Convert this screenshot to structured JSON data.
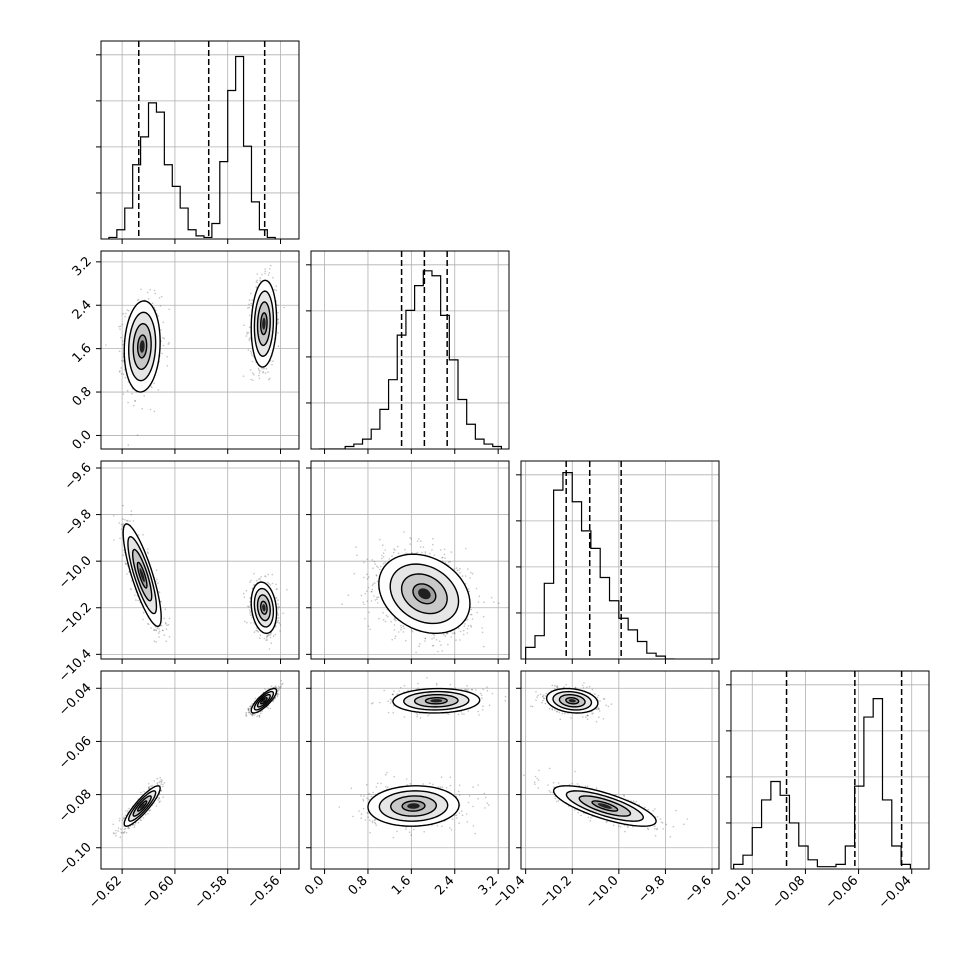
{
  "chart_data": {
    "type": "corner",
    "params": [
      {
        "ticks": [
          -0.62,
          -0.6,
          -0.58,
          -0.56
        ],
        "tick_labels": [
          "−0.62",
          "−0.60",
          "−0.58",
          "−0.56"
        ],
        "range": [
          -0.628,
          -0.553
        ]
      },
      {
        "ticks": [
          0.0,
          0.8,
          1.6,
          2.4,
          3.2
        ],
        "tick_labels": [
          "0.0",
          "0.8",
          "1.6",
          "2.4",
          "3.2"
        ],
        "range": [
          -0.25,
          3.4
        ]
      },
      {
        "ticks": [
          -10.4,
          -10.2,
          -10.0,
          -9.8,
          -9.6
        ],
        "tick_labels": [
          "−10.4",
          "−10.2",
          "−10.0",
          "−9.8",
          "−9.6"
        ],
        "range": [
          -10.42,
          -9.57
        ]
      },
      {
        "ticks": [
          -0.1,
          -0.08,
          -0.06,
          -0.04
        ],
        "tick_labels": [
          "−0.10",
          "−0.08",
          "−0.06",
          "−0.04"
        ],
        "range": [
          -0.108,
          -0.0335
        ]
      }
    ],
    "histograms": [
      {
        "edges_start": -0.625,
        "bin_width": 0.003,
        "counts": [
          0.5,
          3,
          10,
          24,
          33,
          44,
          41,
          24,
          17,
          10,
          3,
          1,
          0.5,
          5,
          25,
          48,
          59,
          30,
          12,
          3,
          0.5
        ],
        "quantiles": [
          -0.6137,
          -0.5872,
          -0.566
        ],
        "ymax": 64
      },
      {
        "edges_start": -0.1,
        "bin_width": 0.16,
        "counts": [
          0,
          0,
          0,
          0.5,
          1,
          2,
          4,
          8,
          14,
          23,
          28,
          33,
          36,
          35,
          27,
          18,
          10,
          5,
          2,
          1,
          0.5
        ],
        "quantiles": [
          1.42,
          1.84,
          2.26
        ],
        "ymax": 40
      },
      {
        "edges_start": -10.4,
        "bin_width": 0.04,
        "counts": [
          2,
          4,
          13,
          29,
          32,
          27,
          22,
          19,
          14,
          10,
          7,
          5,
          3,
          1,
          0.5,
          0
        ],
        "quantiles": [
          -10.226,
          -10.125,
          -9.99
        ],
        "ymax": 34
      },
      {
        "edges_start": -0.107,
        "bin_width": 0.0035,
        "counts": [
          1,
          3,
          9,
          15,
          19,
          16,
          10,
          5,
          2,
          0.5,
          0.5,
          1,
          5,
          18,
          33,
          37,
          15,
          5,
          1
        ],
        "quantiles": [
          -0.0871,
          -0.0614,
          -0.0438
        ],
        "ymax": 43
      }
    ],
    "pairs": [
      {
        "row": 1,
        "col": 0,
        "modes": [
          {
            "mx": -0.6124,
            "my": 1.64,
            "sx": 0.0034,
            "sy": 0.42,
            "rho": 0.1,
            "w": 0.5
          },
          {
            "mx": -0.5663,
            "my": 2.06,
            "sx": 0.0024,
            "sy": 0.4,
            "rho": 0.1,
            "w": 0.5
          }
        ]
      },
      {
        "row": 2,
        "col": 0,
        "modes": [
          {
            "mx": -0.6124,
            "my": -10.06,
            "sx": 0.0036,
            "sy": 0.11,
            "rho": -0.82,
            "w": 0.5
          },
          {
            "mx": -0.5663,
            "my": -10.2,
            "sx": 0.0024,
            "sy": 0.055,
            "rho": -0.2,
            "w": 0.5
          }
        ]
      },
      {
        "row": 2,
        "col": 1,
        "modes": [
          {
            "mx": 1.84,
            "my": -10.14,
            "sx": 0.42,
            "sy": 0.085,
            "rho": -0.25,
            "w": 1
          }
        ]
      },
      {
        "row": 3,
        "col": 0,
        "modes": [
          {
            "mx": -0.6124,
            "my": -0.0843,
            "sx": 0.0034,
            "sy": 0.0038,
            "rho": 0.88,
            "w": 0.5
          },
          {
            "mx": -0.5663,
            "my": -0.0447,
            "sx": 0.0024,
            "sy": 0.0023,
            "rho": 0.8,
            "w": 0.5
          }
        ]
      },
      {
        "row": 3,
        "col": 1,
        "modes": [
          {
            "mx": 2.06,
            "my": -0.0447,
            "sx": 0.4,
            "sy": 0.0023,
            "rho": 0.05,
            "w": 0.5
          },
          {
            "mx": 1.64,
            "my": -0.0843,
            "sx": 0.42,
            "sy": 0.0038,
            "rho": 0.05,
            "w": 0.5
          }
        ]
      },
      {
        "row": 3,
        "col": 2,
        "modes": [
          {
            "mx": -10.2,
            "my": -0.0447,
            "sx": 0.055,
            "sy": 0.0023,
            "rho": -0.2,
            "w": 0.5
          },
          {
            "mx": -10.06,
            "my": -0.0843,
            "sx": 0.11,
            "sy": 0.0038,
            "rho": -0.75,
            "w": 0.5
          }
        ]
      }
    ],
    "contour_levels_sigma": [
      0.5,
      1.0,
      1.5,
      2.0
    ],
    "scatter_points_per_panel": 1400,
    "grid": true,
    "colors": {
      "contour": "#000000",
      "points": "#555555",
      "hist": "#000000",
      "grid": "#b0b0b0"
    }
  }
}
